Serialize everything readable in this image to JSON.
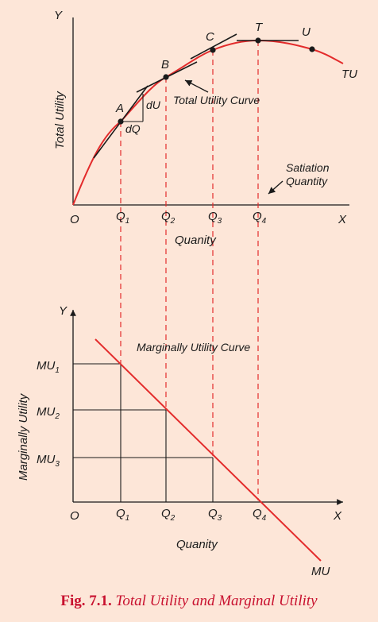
{
  "top_panel": {
    "y_axis": "Y",
    "x_axis": "X",
    "origin": "O",
    "y_title": "Total Utility",
    "x_title": "Quanity",
    "curve_label": "TU",
    "curve_annotation": "Total Utility Curve",
    "satiation_line1": "Satiation",
    "satiation_line2": "Quantity",
    "points": [
      "A",
      "B",
      "C",
      "T",
      "U"
    ],
    "dU": "dU",
    "dQ": "dQ",
    "q_labels": [
      {
        "m": "Q",
        "s": "1"
      },
      {
        "m": "Q",
        "s": "2"
      },
      {
        "m": "Q",
        "s": "3"
      },
      {
        "m": "Q",
        "s": "4"
      }
    ]
  },
  "bottom_panel": {
    "y_axis": "Y",
    "x_axis": "X",
    "origin": "O",
    "y_title": "Marginally Utility",
    "x_title": "Quanity",
    "curve_label": "MU",
    "curve_annotation": "Marginally Utility Curve",
    "mu_labels": [
      {
        "m": "MU",
        "s": "1"
      },
      {
        "m": "MU",
        "s": "2"
      },
      {
        "m": "MU",
        "s": "3"
      }
    ],
    "q_labels": [
      {
        "m": "Q",
        "s": "1"
      },
      {
        "m": "Q",
        "s": "2"
      },
      {
        "m": "Q",
        "s": "3"
      },
      {
        "m": "Q",
        "s": "4"
      }
    ]
  },
  "caption": {
    "number": "Fig. 7.1.",
    "text": "Total Utility and Marginal Utility"
  },
  "colors": {
    "background": "#fde6d8",
    "curve": "#e32b2b",
    "dashed": "#e32b2b",
    "axis": "#1a1a1a",
    "caption": "#c8102e"
  }
}
